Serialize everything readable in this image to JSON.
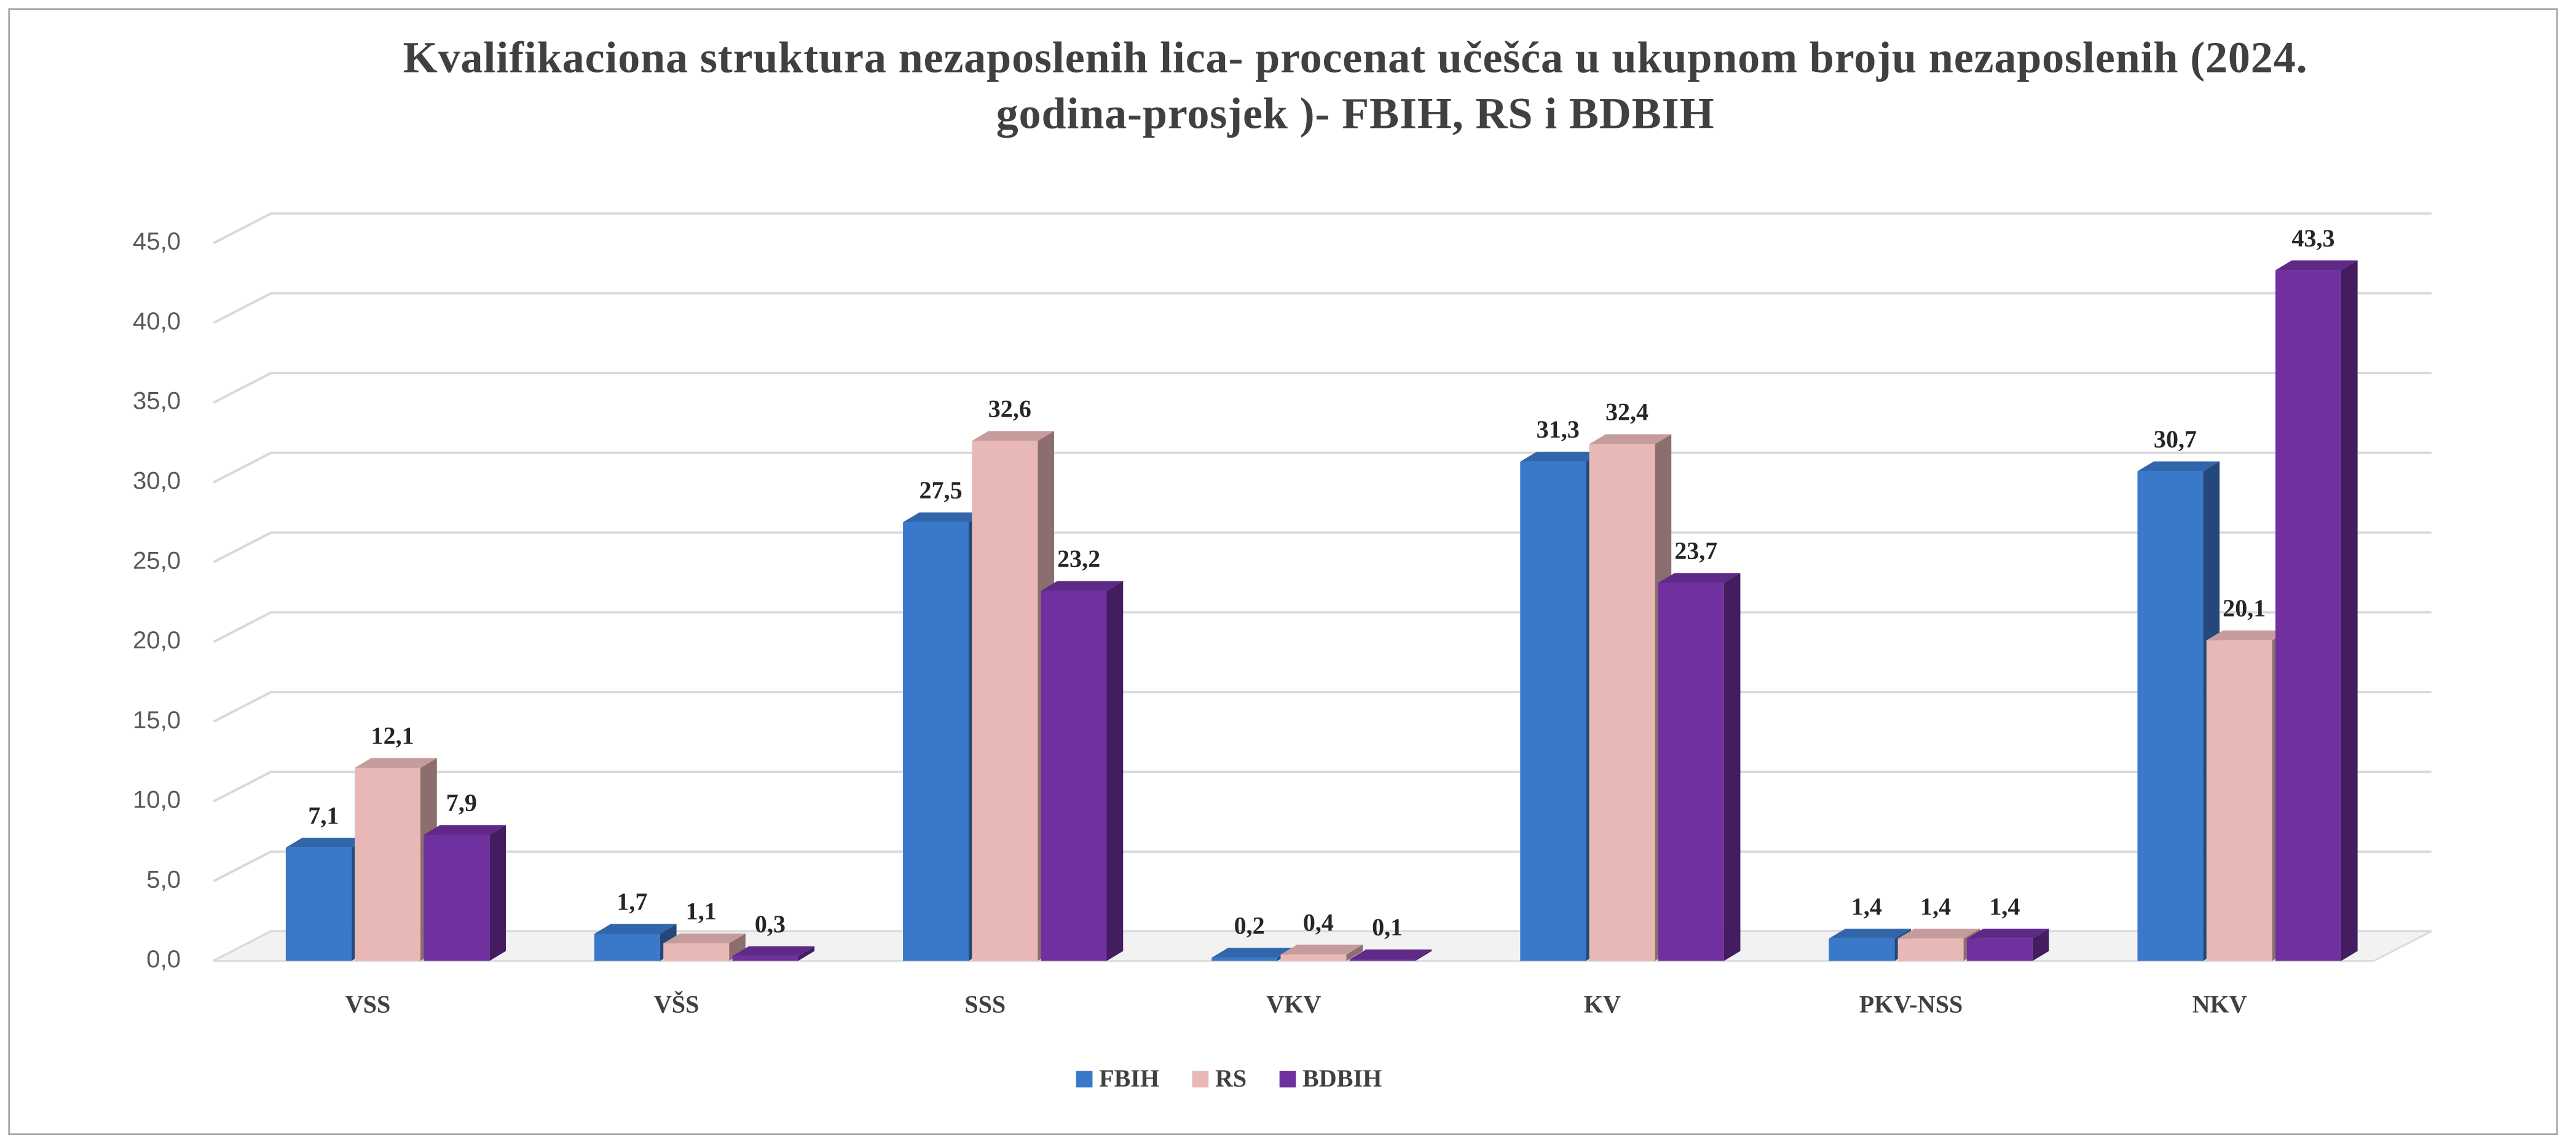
{
  "chart_data": {
    "type": "bar3d",
    "title": "Kvalifikaciona struktura nezaposlenih lica- procenat učešća u ukupnom broju nezaposlenih (2024. godina-prosjek )- FBIH, RS i BDBIH",
    "categories": [
      "VSS",
      "VŠS",
      "SSS",
      "VKV",
      "KV",
      "PKV-NSS",
      "NKV"
    ],
    "series": [
      {
        "name": "FBIH",
        "color": "#3a78c9",
        "values": [
          7.1,
          1.7,
          27.5,
          0.2,
          31.3,
          1.4,
          30.7
        ],
        "value_labels": [
          "7,1",
          "1,7",
          "27,5",
          "0,2",
          "31,3",
          "1,4",
          "30,7"
        ]
      },
      {
        "name": "RS",
        "color": "#e8b8b6",
        "values": [
          12.1,
          1.1,
          32.6,
          0.4,
          32.4,
          1.4,
          20.1
        ],
        "value_labels": [
          "12,1",
          "1,1",
          "32,6",
          "0,4",
          "32,4",
          "1,4",
          "20,1"
        ]
      },
      {
        "name": "BDBIH",
        "color": "#7030a0",
        "values": [
          7.9,
          0.3,
          23.2,
          0.1,
          23.7,
          1.4,
          43.3
        ],
        "value_labels": [
          "7,9",
          "0,3",
          "23,2",
          "0,1",
          "23,7",
          "1,4",
          "43,3"
        ]
      }
    ],
    "ylim": [
      0,
      45
    ],
    "yticks": [
      {
        "value": 0,
        "label": "0,0"
      },
      {
        "value": 5,
        "label": "5,0"
      },
      {
        "value": 10,
        "label": "10,0"
      },
      {
        "value": 15,
        "label": "15,0"
      },
      {
        "value": 20,
        "label": "20,0"
      },
      {
        "value": 25,
        "label": "25,0"
      },
      {
        "value": 30,
        "label": "30,0"
      },
      {
        "value": 35,
        "label": "35,0"
      },
      {
        "value": 40,
        "label": "40,0"
      },
      {
        "value": 45,
        "label": "45,0"
      }
    ],
    "grid": true,
    "legend": "bottom"
  }
}
